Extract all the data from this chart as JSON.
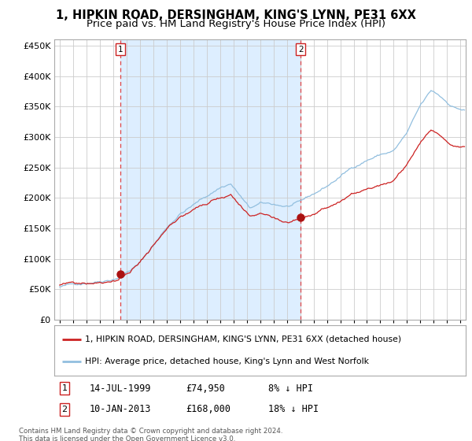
{
  "title": "1, HIPKIN ROAD, DERSINGHAM, KING'S LYNN, PE31 6XX",
  "subtitle": "Price paid vs. HM Land Registry's House Price Index (HPI)",
  "legend_line1": "1, HIPKIN ROAD, DERSINGHAM, KING'S LYNN, PE31 6XX (detached house)",
  "legend_line2": "HPI: Average price, detached house, King's Lynn and West Norfolk",
  "annotation1_date": "14-JUL-1999",
  "annotation1_price": "£74,950",
  "annotation1_hpi": "8% ↓ HPI",
  "annotation2_date": "10-JAN-2013",
  "annotation2_price": "£168,000",
  "annotation2_hpi": "18% ↓ HPI",
  "footnote1": "Contains HM Land Registry data © Crown copyright and database right 2024.",
  "footnote2": "This data is licensed under the Open Government Licence v3.0.",
  "sale1_year": 1999.54,
  "sale1_price": 74950,
  "sale2_year": 2013.03,
  "sale2_price": 168000,
  "hpi_color": "#92bfdf",
  "property_color": "#cc2222",
  "dot_color": "#aa1111",
  "vline_color": "#dd4444",
  "bg_shade_color": "#ddeeff",
  "plot_bg": "#ffffff",
  "grid_color": "#cccccc",
  "ylim_max": 460000,
  "xlim_start": 1994.6,
  "xlim_end": 2025.4
}
